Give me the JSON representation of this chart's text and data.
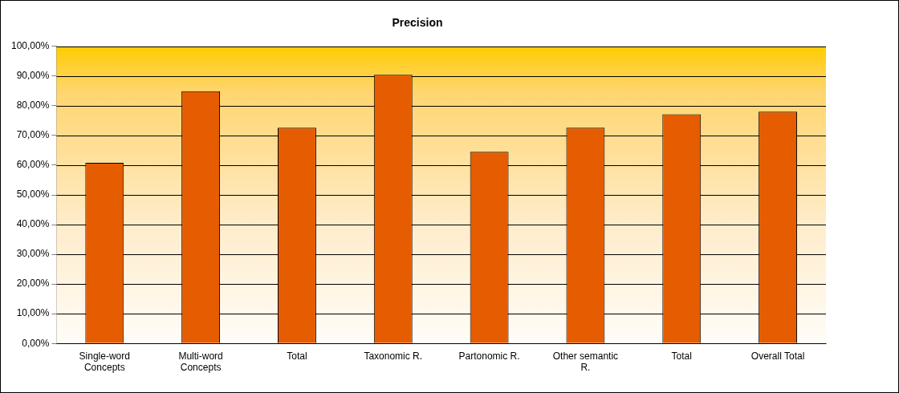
{
  "chart_data": {
    "type": "bar",
    "title": "Precision",
    "categories": [
      "Single-word Concepts",
      "Multi-word Concepts",
      "Total",
      "Taxonomic R.",
      "Partonomic R.",
      "Other semantic R.",
      "Total",
      "Overall Total"
    ],
    "values": [
      60.8,
      84.9,
      72.6,
      90.4,
      64.5,
      72.6,
      77.1,
      78.0
    ],
    "color": "#e65c00",
    "ylim": [
      0,
      100
    ],
    "yticks": [
      {
        "value": 0,
        "label": "0,00%"
      },
      {
        "value": 10,
        "label": "10,00%"
      },
      {
        "value": 20,
        "label": "20,00%"
      },
      {
        "value": 30,
        "label": "30,00%"
      },
      {
        "value": 40,
        "label": "40,00%"
      },
      {
        "value": 50,
        "label": "50,00%"
      },
      {
        "value": 60,
        "label": "60,00%"
      },
      {
        "value": 70,
        "label": "70,00%"
      },
      {
        "value": 80,
        "label": "80,00%"
      },
      {
        "value": 90,
        "label": "90,00%"
      },
      {
        "value": 100,
        "label": "100,00%"
      }
    ],
    "grid": "y"
  }
}
